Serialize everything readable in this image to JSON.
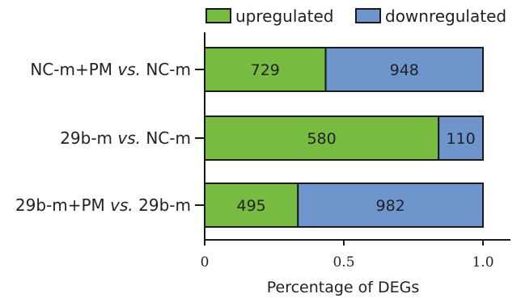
{
  "chart_data": {
    "type": "bar",
    "orientation": "horizontal",
    "stacked": true,
    "normalized": true,
    "categories": [
      {
        "pre": "NC-m+PM ",
        "vs": "vs.",
        "post": " NC-m"
      },
      {
        "pre": "29b-m ",
        "vs": "vs.",
        "post": " NC-m"
      },
      {
        "pre": "29b-m+PM ",
        "vs": "vs.",
        "post": " 29b-m"
      }
    ],
    "series": [
      {
        "name": "upregulated",
        "color": "#77bb41",
        "values": [
          729,
          580,
          495
        ]
      },
      {
        "name": "downregulated",
        "color": "#6f95cd",
        "values": [
          948,
          110,
          982
        ]
      }
    ],
    "xlabel": "Percentage of DEGs",
    "xlim": [
      0,
      1.05
    ],
    "xticks": [
      {
        "value": 0,
        "label": "0"
      },
      {
        "value": 0.5,
        "label": "0.5"
      },
      {
        "value": 1.0,
        "label": "1.0"
      }
    ],
    "legend_position": "top",
    "grid": false
  }
}
